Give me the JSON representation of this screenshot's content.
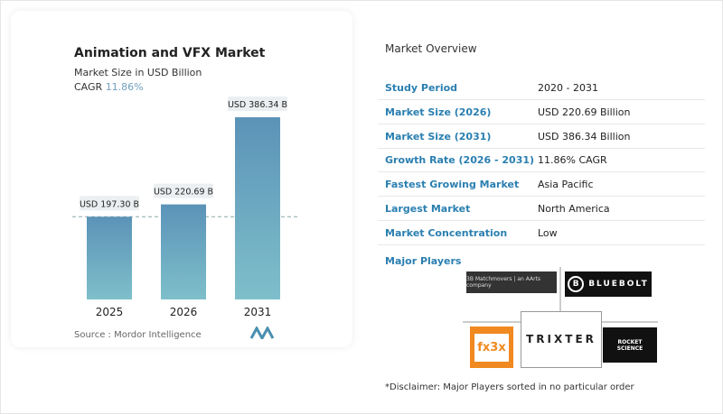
{
  "chart_data": {
    "type": "bar",
    "title": "Animation and VFX Market",
    "subtitle": "Market Size in USD Billion",
    "cagr_label": "CAGR",
    "cagr_value": "11.86%",
    "categories": [
      "2025",
      "2026",
      "2031"
    ],
    "values": [
      197.3,
      220.69,
      386.34
    ],
    "data_labels": [
      "USD 197.30 B",
      "USD 220.69 B",
      "USD 386.34 B"
    ],
    "ylim": [
      40,
      390
    ],
    "grid": false,
    "reference_line": "dashed at 2025 value",
    "bar_color_top": "#5b93b8",
    "bar_color_bottom": "#7ebfca"
  },
  "source": "Source :  Mordor Intelligence",
  "overview": {
    "title": "Market Overview",
    "rows": [
      {
        "k": "Study Period",
        "v": "2020 - 2031"
      },
      {
        "k": "Market Size (2026)",
        "v": "USD 220.69 Billion"
      },
      {
        "k": "Market Size (2031)",
        "v": "USD 386.34 Billion"
      },
      {
        "k": "Growth Rate (2026 - 2031)",
        "v": "11.86% CAGR"
      },
      {
        "k": "Fastest Growing Market",
        "v": "Asia Pacific"
      },
      {
        "k": "Largest Market",
        "v": "North America"
      },
      {
        "k": "Market Concentration",
        "v": "Low"
      }
    ],
    "major_players_label": "Major Players",
    "players": [
      "3B Matchmovers | an AArts company",
      "BLUEBOLT",
      "fx3x",
      "TRIXTER",
      "ROCKET SCIENCE"
    ],
    "disclaimer": "*Disclaimer: Major Players sorted in no particular order"
  }
}
